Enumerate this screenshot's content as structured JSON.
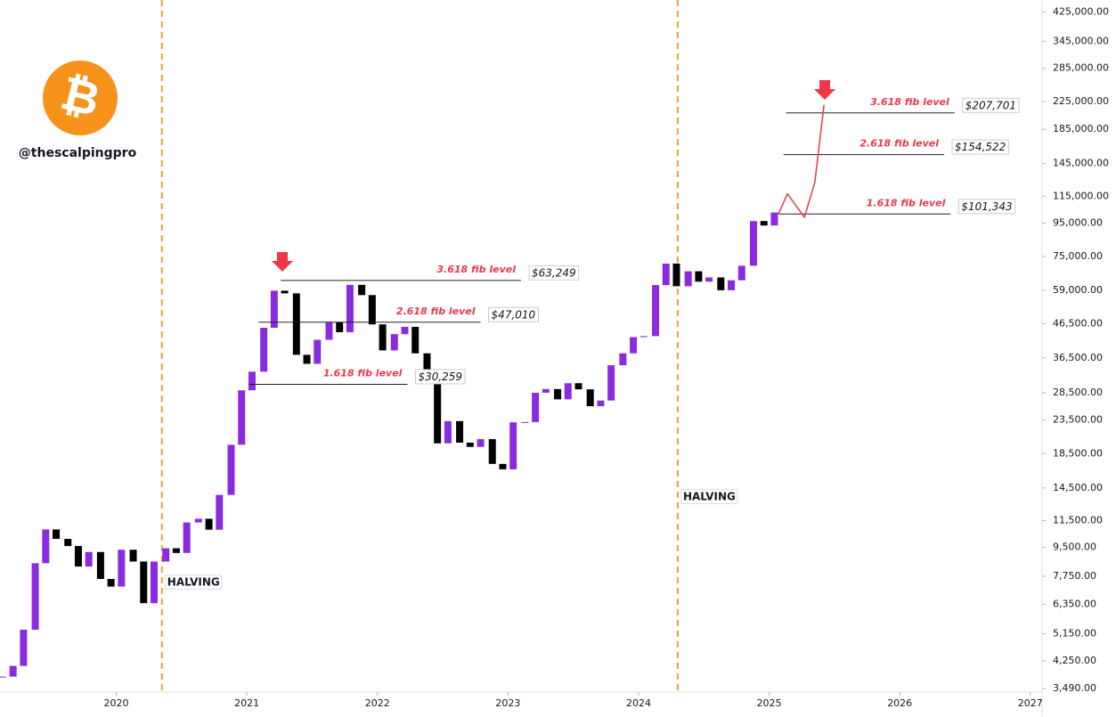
{
  "chart_data": {
    "type": "candle",
    "handle": "@thescalpingpro",
    "logo_symbol": "₿",
    "log_scale": true,
    "up_color": "#8a2be2",
    "down_color": "#000000",
    "xlim": [
      2019.11,
      2027.09
    ],
    "xticks": [
      2020,
      2021,
      2022,
      2023,
      2024,
      2025,
      2026,
      2027
    ],
    "ylim": [
      3405,
      463000
    ],
    "yticks": [
      {
        "value": 425000,
        "label": "425,000.00"
      },
      {
        "value": 345000,
        "label": "345,000.00"
      },
      {
        "value": 285000,
        "label": "285,000.00"
      },
      {
        "value": 225000,
        "label": "225,000.00"
      },
      {
        "value": 185000,
        "label": "185,000.00"
      },
      {
        "value": 145000,
        "label": "145,000.00"
      },
      {
        "value": 115000,
        "label": "115,000.00"
      },
      {
        "value": 95000,
        "label": "95,000.00"
      },
      {
        "value": 75000,
        "label": "75,000.00"
      },
      {
        "value": 59000,
        "label": "59,000.00"
      },
      {
        "value": 46500,
        "label": "46,500.00"
      },
      {
        "value": 36500,
        "label": "36,500.00"
      },
      {
        "value": 28500,
        "label": "28,500.00"
      },
      {
        "value": 23500,
        "label": "23,500.00"
      },
      {
        "value": 18500,
        "label": "18,500.00"
      },
      {
        "value": 14500,
        "label": "14,500.00"
      },
      {
        "value": 11500,
        "label": "11,500.00"
      },
      {
        "value": 9500,
        "label": "9,500.00"
      },
      {
        "value": 7750,
        "label": "7,750.00"
      },
      {
        "value": 6350,
        "label": "6,350.00"
      },
      {
        "value": 5150,
        "label": "5,150.00"
      },
      {
        "value": 4250,
        "label": "4,250.00"
      },
      {
        "value": 3490,
        "label": "3,490.00"
      }
    ],
    "x": [
      2019.13,
      2019.21,
      2019.29,
      2019.38,
      2019.46,
      2019.54,
      2019.63,
      2019.71,
      2019.79,
      2019.88,
      2019.96,
      2020.04,
      2020.13,
      2020.21,
      2020.29,
      2020.38,
      2020.46,
      2020.54,
      2020.63,
      2020.71,
      2020.79,
      2020.88,
      2020.96,
      2021.04,
      2021.13,
      2021.21,
      2021.29,
      2021.38,
      2021.46,
      2021.54,
      2021.63,
      2021.71,
      2021.79,
      2021.88,
      2021.96,
      2022.04,
      2022.13,
      2022.21,
      2022.29,
      2022.38,
      2022.46,
      2022.54,
      2022.63,
      2022.71,
      2022.79,
      2022.88,
      2022.96,
      2023.04,
      2023.13,
      2023.21,
      2023.29,
      2023.38,
      2023.46,
      2023.54,
      2023.63,
      2023.71,
      2023.79,
      2023.88,
      2023.96,
      2024.04,
      2024.13,
      2024.21,
      2024.29,
      2024.38,
      2024.46,
      2024.54,
      2024.63,
      2024.71,
      2024.79,
      2024.88,
      2024.96,
      2025.04
    ],
    "values": [
      3800,
      4100,
      5300,
      8500,
      10800,
      10100,
      9600,
      8300,
      9200,
      7600,
      7200,
      9350,
      8600,
      6400,
      8600,
      9450,
      9140,
      11350,
      11650,
      10780,
      13800,
      19700,
      29000,
      33100,
      45200,
      58800,
      57700,
      37300,
      35000,
      41500,
      47100,
      43800,
      61300,
      57000,
      46300,
      38500,
      43200,
      45500,
      37700,
      31800,
      19900,
      23300,
      20000,
      19400,
      20500,
      17200,
      16550,
      23100,
      23150,
      28500,
      29250,
      27200,
      30500,
      29200,
      25900,
      26970,
      34650,
      37700,
      42300,
      42600,
      61200,
      71300,
      60700,
      67500,
      62700,
      64600,
      59000,
      63300,
      70200,
      96400,
      93400,
      102400
    ],
    "halvings": [
      {
        "x": 2020.35,
        "label": "HALVING"
      },
      {
        "x": 2024.3,
        "label": "HALVING"
      }
    ],
    "fib_levels": [
      {
        "label": "1.618 fib level",
        "price": 30259,
        "price_label": "$30,259",
        "x_range": [
          2021.02,
          2022.23
        ]
      },
      {
        "label": "2.618 fib level",
        "price": 47010,
        "price_label": "$47,010",
        "x_range": [
          2021.09,
          2022.79
        ]
      },
      {
        "label": "3.618 fib level",
        "price": 63249,
        "price_label": "$63,249",
        "x_range": [
          2021.26,
          2023.1
        ]
      },
      {
        "label": "1.618 fib level",
        "price": 101343,
        "price_label": "$101,343",
        "x_range": [
          2025.07,
          2026.39
        ]
      },
      {
        "label": "2.618 fib level",
        "price": 154522,
        "price_label": "$154,522",
        "x_range": [
          2025.11,
          2026.34
        ]
      },
      {
        "label": "3.618 fib level",
        "price": 207701,
        "price_label": "$207,701",
        "x_range": [
          2025.13,
          2026.42
        ]
      }
    ],
    "projection": {
      "color": "#e8394d",
      "x": [
        2025.07,
        2025.14,
        2025.27,
        2025.35,
        2025.42
      ],
      "values": [
        101000,
        117000,
        99000,
        127000,
        220000
      ]
    }
  }
}
